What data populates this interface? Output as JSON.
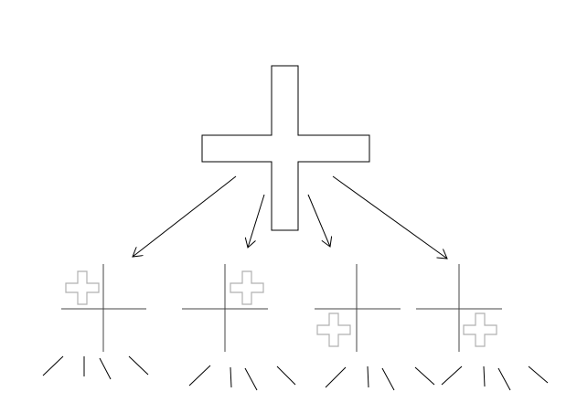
{
  "diagram": {
    "description_free": true,
    "root": {
      "shape": "cross",
      "stroke_color": "#000000",
      "fill_color": "#ffffff"
    },
    "children": [
      {
        "quadrant": "top-left",
        "small_cross_color": "#b0b0b0"
      },
      {
        "quadrant": "top-right",
        "small_cross_color": "#b0b0b0"
      },
      {
        "quadrant": "bottom-left",
        "small_cross_color": "#b0b0b0"
      },
      {
        "quadrant": "bottom-right",
        "small_cross_color": "#b0b0b0"
      }
    ],
    "colors": {
      "line": "#000000",
      "axis": "#444444",
      "faint_cross": "#b0b0b0",
      "background": "#ffffff"
    }
  }
}
